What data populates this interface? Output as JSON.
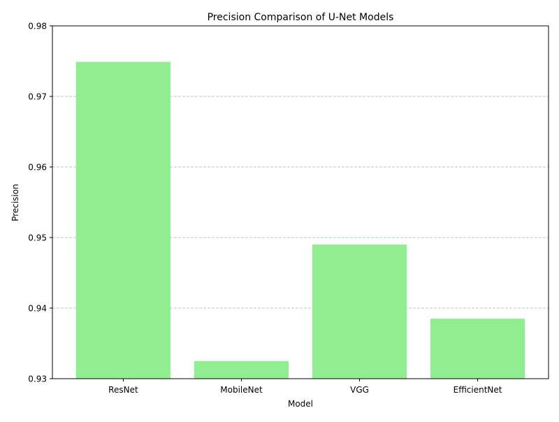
{
  "chart_data": {
    "type": "bar",
    "title": "Precision Comparison of U-Net Models",
    "xlabel": "Model",
    "ylabel": "Precision",
    "categories": [
      "ResNet",
      "MobileNet",
      "VGG",
      "EfficientNet"
    ],
    "values": [
      0.9749,
      0.9325,
      0.949,
      0.9385
    ],
    "ylim": [
      0.93,
      0.98
    ],
    "yticks": [
      0.93,
      0.94,
      0.95,
      0.96,
      0.97,
      0.98
    ],
    "ytick_labels": [
      "0.93",
      "0.94",
      "0.95",
      "0.96",
      "0.97",
      "0.98"
    ],
    "grid": "y-axis dashed",
    "bar_color": "#90ee90",
    "grid_color": "#b0b0b0"
  }
}
